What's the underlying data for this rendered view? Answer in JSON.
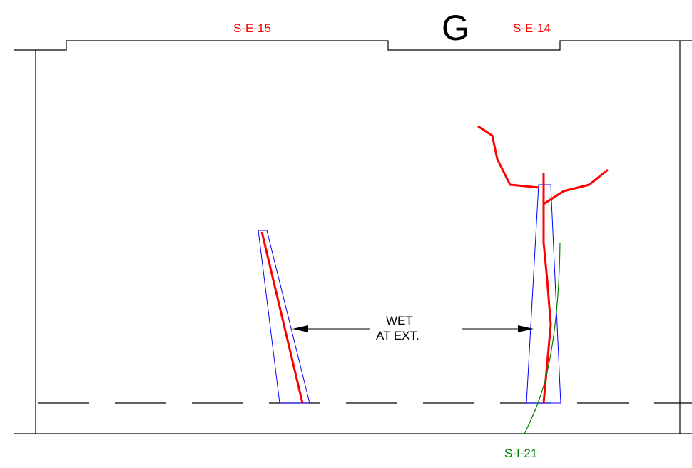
{
  "grid_line_label": "G",
  "elevation_refs": {
    "left": "S-E-15",
    "right": "S-E-14"
  },
  "section_ref": "S-I-21",
  "annotation": {
    "line1": "WET",
    "line2": "AT EXT."
  },
  "colors": {
    "outline": "#000000",
    "crack": "#ff0000",
    "pier_outline": "#0000ff",
    "interior_crack": "#008000",
    "reference_label": "#ff0000",
    "section_label": "#008000"
  }
}
